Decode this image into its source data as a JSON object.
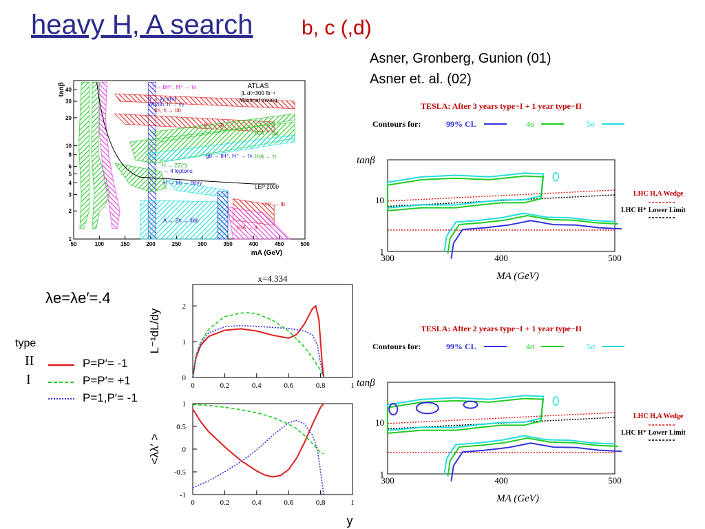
{
  "slide": {
    "title": "heavy H, A search",
    "subtitle": "b, c (,d)",
    "refs": [
      "Asner, Gronberg, Gunion (01)",
      "Asner et. al. (02)"
    ],
    "lambda_label": "λe=λe′=.4",
    "type_header": "type",
    "type_rows": [
      "II",
      "I"
    ],
    "legend": [
      "P=P′= -1",
      "P=P′= +1",
      "P=1,P′= -1"
    ],
    "colors": {
      "title": "#2b2b8f",
      "red": "#e02020",
      "green": "#22cc22",
      "blue": "#3333dd",
      "cyan": "#22dddd",
      "magenta": "#e040e0"
    }
  },
  "chart_data": [
    {
      "type": "area",
      "panel": "atlas",
      "header": [
        "ATLAS",
        "∫L dt=300 fb⁻¹",
        "Maximal mixing"
      ],
      "xlabel": "mA (GeV)",
      "ylabel": "tanβ",
      "xticks": [
        50,
        100,
        150,
        200,
        250,
        300,
        350,
        400,
        450,
        500
      ],
      "yticks": [
        1,
        2,
        3,
        4,
        5,
        6,
        8,
        10,
        20,
        30,
        40
      ],
      "xlim": [
        50,
        500
      ],
      "ylim": [
        1,
        50
      ],
      "yscale": "log",
      "labels": [
        "t → bH⁺, H⁺ → τν",
        "h → γγ and Wh/tth, h → γγ",
        "tth, h → bb",
        "H⁺ → tb",
        "H/A → μμ",
        "H/A → ττ",
        "gb → tH⁺, H⁺ → τν",
        "H → ZZ(*) → 4 leptons",
        "H → hh → bbγγ",
        "LEP 2000",
        "H⁺ → tb",
        "A → Zh → llbb",
        "H/A → tt"
      ]
    },
    {
      "type": "line",
      "panel": "tesla-1",
      "title": "TESLA: After 3 years type−I + 1 year type−II",
      "contour_label": "Contours for:",
      "contour_levels": [
        "99% CL",
        "4σ",
        "5σ"
      ],
      "xlabel": "MA (GeV)",
      "ylabel": "tanβ",
      "xticks": [
        300,
        400,
        500
      ],
      "yticks": [
        1,
        10
      ],
      "xlim": [
        300,
        500
      ],
      "ylim": [
        1,
        60
      ],
      "yscale": "log",
      "side_labels": [
        "LHC H,A Wedge",
        "LHC H⁺ Lower Limit"
      ],
      "series": [
        {
          "name": "LHC H,A Wedge",
          "x": [
            300,
            500
          ],
          "y": [
            2.6,
            2.6
          ]
        },
        {
          "name": "LHC H,A Wedge",
          "x": [
            300,
            500
          ],
          "y": [
            9.5,
            15.5
          ]
        },
        {
          "name": "LHC H⁺ Lower Limit",
          "x": [
            300,
            500
          ],
          "y": [
            7.5,
            12.5
          ]
        }
      ]
    },
    {
      "type": "line",
      "panel": "tesla-2",
      "title": "TESLA: After 2 years type−I + 1 year type−II",
      "contour_label": "Contours for:",
      "contour_levels": [
        "99% CL",
        "4σ",
        "5σ"
      ],
      "xlabel": "MA (GeV)",
      "ylabel": "tanβ",
      "xticks": [
        300,
        400,
        500
      ],
      "yticks": [
        1,
        10
      ],
      "xlim": [
        300,
        500
      ],
      "ylim": [
        1,
        60
      ],
      "yscale": "log",
      "side_labels": [
        "LHC H,A Wedge",
        "LHC H⁺ Lower Limit"
      ],
      "series": [
        {
          "name": "LHC H,A Wedge",
          "x": [
            300,
            500
          ],
          "y": [
            2.6,
            2.6
          ]
        },
        {
          "name": "LHC H,A Wedge",
          "x": [
            300,
            500
          ],
          "y": [
            9.5,
            15.5
          ]
        },
        {
          "name": "LHC H⁺ Lower Limit",
          "x": [
            300,
            500
          ],
          "y": [
            7.5,
            12.5
          ]
        }
      ]
    },
    {
      "type": "line",
      "panel": "spectrum",
      "title": "x=4.334",
      "ylabel": "L⁻¹dL/dy",
      "xticks": [
        0,
        0.2,
        0.4,
        0.6,
        0.8,
        1
      ],
      "yticks": [
        0,
        1,
        2
      ],
      "xlim": [
        0,
        1
      ],
      "ylim": [
        0,
        2.6
      ],
      "series": [
        {
          "name": "P=P′= -1",
          "x": [
            0,
            0.02,
            0.05,
            0.1,
            0.2,
            0.3,
            0.4,
            0.5,
            0.6,
            0.65,
            0.7,
            0.75,
            0.77,
            0.79,
            0.81,
            0.82
          ],
          "y": [
            0,
            0.55,
            0.9,
            1.15,
            1.32,
            1.36,
            1.3,
            1.18,
            1.1,
            1.2,
            1.5,
            1.93,
            2.0,
            1.6,
            0.4,
            0
          ]
        },
        {
          "name": "P=P′= +1",
          "x": [
            0,
            0.02,
            0.05,
            0.1,
            0.2,
            0.3,
            0.35,
            0.4,
            0.5,
            0.6,
            0.7,
            0.75,
            0.8,
            0.82
          ],
          "y": [
            0,
            0.6,
            1.0,
            1.35,
            1.7,
            1.8,
            1.81,
            1.78,
            1.6,
            1.3,
            0.85,
            0.55,
            0.2,
            0
          ]
        },
        {
          "name": "P=1,P′= -1",
          "x": [
            0,
            0.02,
            0.05,
            0.1,
            0.2,
            0.3,
            0.4,
            0.5,
            0.6,
            0.7,
            0.75,
            0.78,
            0.8,
            0.82
          ],
          "y": [
            0,
            0.6,
            0.95,
            1.25,
            1.42,
            1.45,
            1.43,
            1.4,
            1.37,
            1.3,
            1.18,
            0.9,
            0.4,
            0
          ]
        }
      ]
    },
    {
      "type": "line",
      "panel": "helicity",
      "ylabel": "<λλ′ >",
      "xlabel": "y",
      "xticks": [
        0,
        0.2,
        0.4,
        0.6,
        0.8,
        1
      ],
      "yticks": [
        -1,
        -0.5,
        0,
        0.5,
        1
      ],
      "xlim": [
        0,
        1
      ],
      "ylim": [
        -1,
        1
      ],
      "series": [
        {
          "name": "P=P′= -1",
          "x": [
            0,
            0.05,
            0.1,
            0.2,
            0.3,
            0.4,
            0.45,
            0.5,
            0.55,
            0.6,
            0.65,
            0.7,
            0.75,
            0.8,
            0.82
          ],
          "y": [
            0.88,
            0.6,
            0.38,
            0.05,
            -0.25,
            -0.48,
            -0.57,
            -0.61,
            -0.58,
            -0.45,
            -0.2,
            0.15,
            0.55,
            0.92,
            1.0
          ]
        },
        {
          "name": "P=P′= +1",
          "x": [
            0,
            0.1,
            0.2,
            0.3,
            0.4,
            0.5,
            0.6,
            0.65,
            0.7,
            0.75,
            0.8,
            0.82
          ],
          "y": [
            0.98,
            0.96,
            0.92,
            0.87,
            0.8,
            0.7,
            0.55,
            0.45,
            0.3,
            0.12,
            -0.08,
            -0.1
          ]
        },
        {
          "name": "P=1,P′= -1",
          "x": [
            0,
            0.1,
            0.2,
            0.3,
            0.4,
            0.5,
            0.6,
            0.65,
            0.7,
            0.75,
            0.78,
            0.8,
            0.82
          ],
          "y": [
            -0.85,
            -0.7,
            -0.5,
            -0.28,
            -0.02,
            0.3,
            0.58,
            0.63,
            0.55,
            0.3,
            0.0,
            -0.5,
            -1.0
          ]
        }
      ]
    }
  ]
}
